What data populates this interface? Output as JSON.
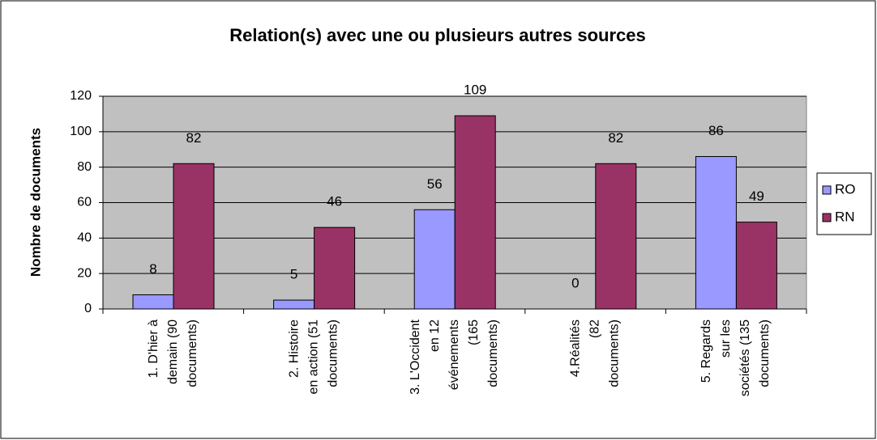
{
  "chart_data": {
    "type": "bar",
    "title": "Relation(s) avec une ou plusieurs autres sources",
    "y_label": "Nombre de documents",
    "categories": [
      "1. D'hier à demain (90 documents)",
      "2. Histoire en action (51 documents)",
      "3. L'Occident en 12 événements (165 documents)",
      "4.Réalités (82 documents)",
      "5. Regards sur les sociétés (135 documents)"
    ],
    "series": [
      {
        "name": "RO",
        "color": "#9999ff",
        "values": [
          8,
          5,
          56,
          0,
          86
        ]
      },
      {
        "name": "RN",
        "color": "#993366",
        "values": [
          82,
          46,
          109,
          82,
          49
        ]
      }
    ],
    "ylim": [
      0,
      120
    ],
    "yticks": [
      0,
      20,
      40,
      60,
      80,
      100,
      120
    ],
    "grid": true,
    "legend": "right"
  }
}
